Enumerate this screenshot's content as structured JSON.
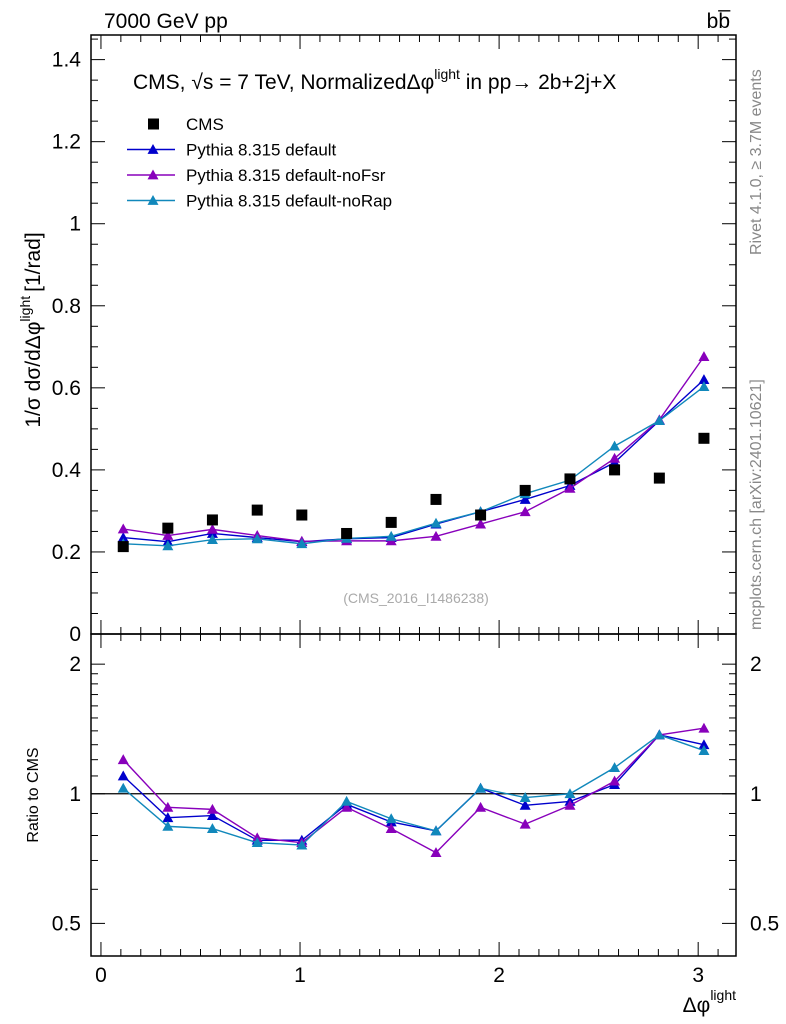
{
  "header": {
    "left_label": "7000 GeV pp",
    "right_label": "bb̅"
  },
  "side_labels": {
    "rivet": "Rivet 4.1.0, ≥ 3.7M events",
    "mcplots": "mcplots.cern.ch [arXiv:2401.10621]"
  },
  "plot_title": {
    "prefix": "CMS, ",
    "sqrt": "√s",
    "middle": " = 7 TeV, NormalizedΔφ",
    "sup": "light",
    "suffix": " in pp→ 2b+2j+X"
  },
  "watermark": "(CMS_2016_I1486238)",
  "colors": {
    "cms": "#000000",
    "default": "#0000cc",
    "noFsr": "#8800bb",
    "noRap": "#1188bb",
    "frame": "#000000"
  },
  "chart_data": [
    {
      "type": "scatter",
      "panel": "main",
      "title": "CMS, √s = 7 TeV, NormalizedΔφlight in pp→ 2b+2j+X",
      "xlabel": "Δφ",
      "xlabel_sup": "light",
      "ylabel": "1/σ dσ/dΔφ",
      "ylabel_sup": "light",
      "ylabel_unit": "[1/rad]",
      "xlim": [
        -0.05,
        3.19
      ],
      "ylim": [
        0,
        1.46
      ],
      "xticks": [
        "0",
        "1",
        "2",
        "3"
      ],
      "yticks": [
        "0",
        "0.2",
        "0.4",
        "0.6",
        "0.8",
        "1",
        "1.2",
        "1.4"
      ],
      "x": [
        0.112,
        0.336,
        0.56,
        0.785,
        1.009,
        1.234,
        1.458,
        1.683,
        1.907,
        2.131,
        2.356,
        2.58,
        2.805,
        3.029
      ],
      "series": [
        {
          "name": "CMS",
          "style": "marker",
          "key": "cms",
          "values": [
            0.213,
            0.258,
            0.278,
            0.302,
            0.29,
            0.245,
            0.272,
            0.328,
            0.29,
            0.35,
            0.378,
            0.4,
            0.38,
            0.477
          ]
        },
        {
          "name": "Pythia 8.315 default",
          "style": "line",
          "key": "default",
          "values": [
            0.235,
            0.225,
            0.245,
            0.235,
            0.225,
            0.232,
            0.235,
            0.268,
            0.298,
            0.328,
            0.362,
            0.418,
            0.52,
            0.62
          ]
        },
        {
          "name": "Pythia 8.315 default-noFsr",
          "style": "line",
          "key": "noFsr",
          "values": [
            0.256,
            0.24,
            0.255,
            0.24,
            0.226,
            0.227,
            0.227,
            0.238,
            0.268,
            0.298,
            0.355,
            0.428,
            0.522,
            0.676
          ]
        },
        {
          "name": "Pythia 8.315 default-noRap",
          "style": "line",
          "key": "noRap",
          "values": [
            0.22,
            0.215,
            0.23,
            0.232,
            0.22,
            0.233,
            0.238,
            0.27,
            0.298,
            0.342,
            0.375,
            0.458,
            0.52,
            0.603
          ]
        }
      ]
    },
    {
      "type": "line",
      "panel": "ratio",
      "ylabel": "Ratio to CMS",
      "ylim": [
        0.42,
        2.35
      ],
      "yscale": "log",
      "yticks": [
        "0.5",
        "1",
        "2"
      ],
      "reference": 1,
      "x": [
        0.112,
        0.336,
        0.56,
        0.785,
        1.009,
        1.234,
        1.458,
        1.683,
        1.907,
        2.131,
        2.356,
        2.58,
        2.805,
        3.029
      ],
      "series": [
        {
          "name": "Pythia 8.315 default",
          "key": "default",
          "values": [
            1.1,
            0.88,
            0.89,
            0.78,
            0.78,
            0.945,
            0.86,
            0.82,
            1.03,
            0.94,
            0.96,
            1.05,
            1.37,
            1.3
          ]
        },
        {
          "name": "Pythia 8.315 default-noFsr",
          "key": "noFsr",
          "values": [
            1.2,
            0.93,
            0.92,
            0.79,
            0.77,
            0.93,
            0.83,
            0.73,
            0.93,
            0.85,
            0.94,
            1.07,
            1.37,
            1.42
          ]
        },
        {
          "name": "Pythia 8.315 default-noRap",
          "key": "noRap",
          "values": [
            1.03,
            0.84,
            0.83,
            0.77,
            0.76,
            0.96,
            0.875,
            0.82,
            1.03,
            0.98,
            1.0,
            1.15,
            1.37,
            1.26
          ]
        }
      ]
    }
  ]
}
